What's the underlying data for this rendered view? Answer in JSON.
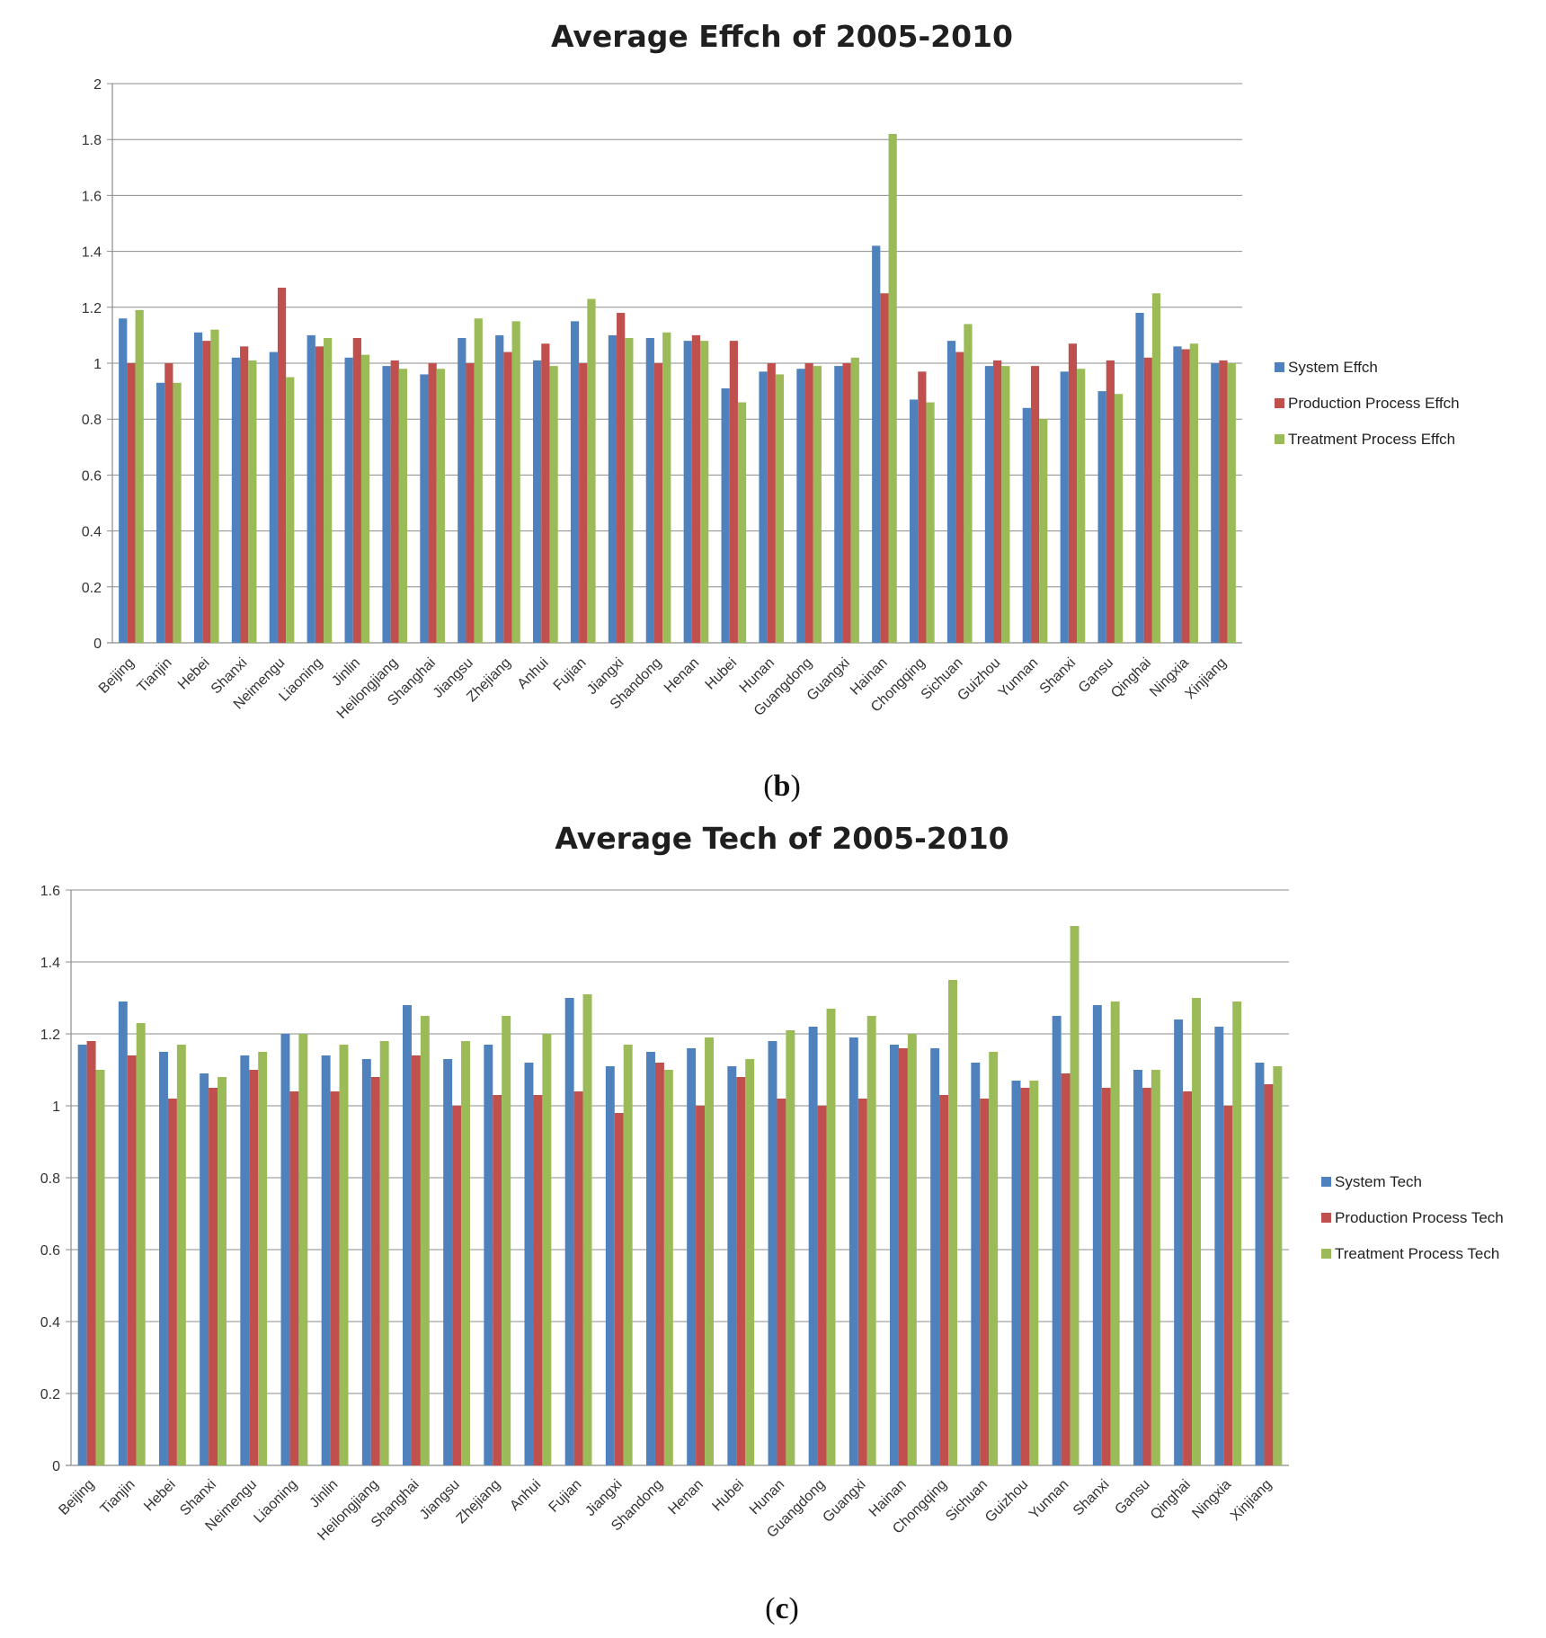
{
  "chart_data": [
    {
      "type": "bar",
      "title": "Average Effch of 2005-2010",
      "panel_label": "b",
      "xlabel": "",
      "ylabel": "",
      "ylim": [
        0,
        2
      ],
      "yticks": [
        "0",
        "0.2",
        "0.4",
        "0.6",
        "0.8",
        "1",
        "1.2",
        "1.4",
        "1.6",
        "1.8",
        "2"
      ],
      "grid": true,
      "legend_position": "right",
      "categories": [
        "Beijing",
        "Tianjin",
        "Hebei",
        "Shanxi",
        "Neimengu",
        "Liaoning",
        "Jinlin",
        "Heilongjiang",
        "Shanghai",
        "Jiangsu",
        "Zhejiang",
        "Anhui",
        "Fujian",
        "Jiangxi",
        "Shandong",
        "Henan",
        "Hubei",
        "Hunan",
        "Guangdong",
        "Guangxi",
        "Hainan",
        "Chongqing",
        "Sichuan",
        "Guizhou",
        "Yunnan",
        "Shanxi",
        "Gansu",
        "Qinghai",
        "Ningxia",
        "Xinjiang"
      ],
      "series": [
        {
          "name": "System Effch",
          "color": "#4f81bd",
          "values": [
            1.16,
            0.93,
            1.11,
            1.02,
            1.04,
            1.1,
            1.02,
            0.99,
            0.96,
            1.09,
            1.1,
            1.01,
            1.15,
            1.1,
            1.09,
            1.08,
            0.91,
            0.97,
            0.98,
            0.99,
            1.42,
            0.87,
            1.08,
            0.99,
            0.84,
            0.97,
            0.9,
            1.18,
            1.06,
            1.0
          ]
        },
        {
          "name": "Production Process Effch",
          "color": "#c0504d",
          "values": [
            1.0,
            1.0,
            1.08,
            1.06,
            1.27,
            1.06,
            1.09,
            1.01,
            1.0,
            1.0,
            1.04,
            1.07,
            1.0,
            1.18,
            1.0,
            1.1,
            1.08,
            1.0,
            1.0,
            1.0,
            1.25,
            0.97,
            1.04,
            1.01,
            0.99,
            1.07,
            1.01,
            1.02,
            1.05,
            1.01
          ]
        },
        {
          "name": "Treatment Process Effch",
          "color": "#9bbb59",
          "values": [
            1.19,
            0.93,
            1.12,
            1.01,
            0.95,
            1.09,
            1.03,
            0.98,
            0.98,
            1.16,
            1.15,
            0.99,
            1.23,
            1.09,
            1.11,
            1.08,
            0.86,
            0.96,
            0.99,
            1.02,
            1.82,
            0.86,
            1.14,
            0.99,
            0.8,
            0.98,
            0.89,
            1.25,
            1.07,
            1.0
          ]
        }
      ]
    },
    {
      "type": "bar",
      "title": "Average Tech of 2005-2010",
      "panel_label": "c",
      "xlabel": "",
      "ylabel": "",
      "ylim": [
        0,
        1.6
      ],
      "yticks": [
        "0",
        "0.2",
        "0.4",
        "0.6",
        "0.8",
        "1",
        "1.2",
        "1.4",
        "1.6"
      ],
      "grid": true,
      "legend_position": "right",
      "categories": [
        "Beijing",
        "Tianjin",
        "Hebei",
        "Shanxi",
        "Neimengu",
        "Liaoning",
        "Jinlin",
        "Heilongjiang",
        "Shanghai",
        "Jiangsu",
        "Zhejiang",
        "Anhui",
        "Fujian",
        "Jiangxi",
        "Shandong",
        "Henan",
        "Hubei",
        "Hunan",
        "Guangdong",
        "Guangxi",
        "Hainan",
        "Chongqing",
        "Sichuan",
        "Guizhou",
        "Yunnan",
        "Shanxi",
        "Gansu",
        "Qinghai",
        "Ningxia",
        "Xinjiang"
      ],
      "series": [
        {
          "name": "System Tech",
          "color": "#4f81bd",
          "values": [
            1.17,
            1.29,
            1.15,
            1.09,
            1.14,
            1.2,
            1.14,
            1.13,
            1.28,
            1.13,
            1.17,
            1.12,
            1.3,
            1.11,
            1.15,
            1.16,
            1.11,
            1.18,
            1.22,
            1.19,
            1.17,
            1.16,
            1.12,
            1.07,
            1.25,
            1.28,
            1.1,
            1.24,
            1.22,
            1.12
          ]
        },
        {
          "name": "Production Process Tech",
          "color": "#c0504d",
          "values": [
            1.18,
            1.14,
            1.02,
            1.05,
            1.1,
            1.04,
            1.04,
            1.08,
            1.14,
            1.0,
            1.03,
            1.03,
            1.04,
            0.98,
            1.12,
            1.0,
            1.08,
            1.02,
            1.0,
            1.02,
            1.16,
            1.03,
            1.02,
            1.05,
            1.09,
            1.05,
            1.05,
            1.04,
            1.0,
            1.06
          ]
        },
        {
          "name": "Treatment Process Tech",
          "color": "#9bbb59",
          "values": [
            1.1,
            1.23,
            1.17,
            1.08,
            1.15,
            1.2,
            1.17,
            1.18,
            1.25,
            1.18,
            1.25,
            1.2,
            1.31,
            1.17,
            1.1,
            1.19,
            1.13,
            1.21,
            1.27,
            1.25,
            1.2,
            1.35,
            1.15,
            1.07,
            1.5,
            1.29,
            1.1,
            1.3,
            1.29,
            1.11
          ]
        }
      ]
    }
  ]
}
